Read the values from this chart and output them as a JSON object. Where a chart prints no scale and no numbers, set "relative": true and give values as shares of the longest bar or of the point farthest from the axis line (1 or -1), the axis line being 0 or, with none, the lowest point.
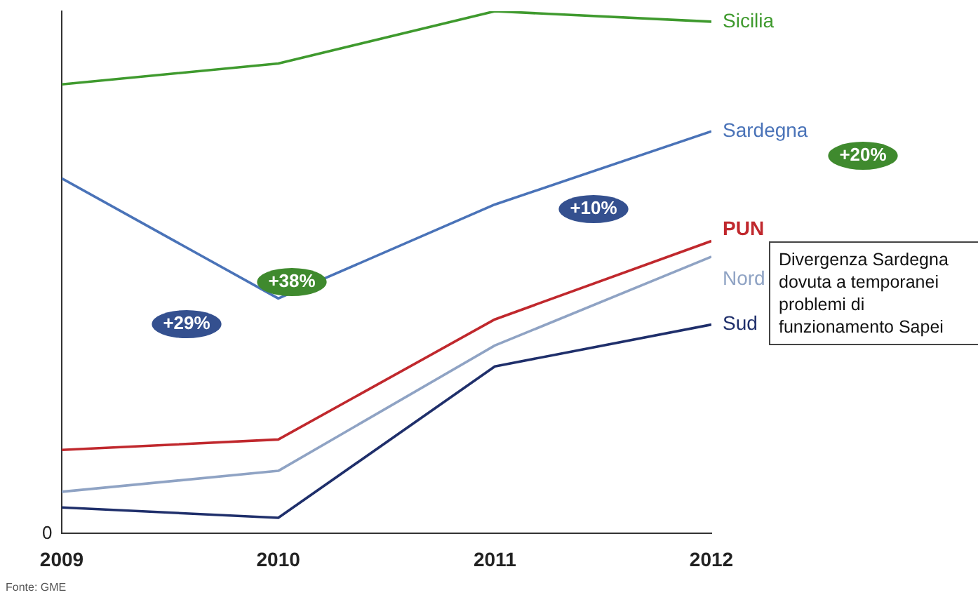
{
  "chart_data": {
    "type": "line",
    "relative": true,
    "x": [
      2009,
      2010,
      2011,
      2012
    ],
    "xlim": [
      2009,
      2012
    ],
    "xticks": [
      2009,
      2010,
      2011,
      2012
    ],
    "grid": false,
    "legend": false,
    "marker": "none",
    "line_style": "solid",
    "series": [
      {
        "name": "Sicilia",
        "color": "#3f9a2e",
        "values": [
          0.86,
          0.9,
          1,
          0.98
        ]
      },
      {
        "name": "Sardegna",
        "color": "#4a73b8",
        "values": [
          0.68,
          0.45,
          0.63,
          0.77
        ]
      },
      {
        "name": "PUN",
        "color": "#c0282d",
        "values": [
          0.16,
          0.18,
          0.41,
          0.56
        ]
      },
      {
        "name": "Nord",
        "color": "#8fa3c4",
        "values": [
          0.08,
          0.12,
          0.36,
          0.53
        ]
      },
      {
        "name": "Sud",
        "color": "#1f2f6b",
        "values": [
          0.05,
          0.03,
          0.32,
          0.4
        ]
      }
    ],
    "annotations": [
      "+29%",
      "+38%",
      "+10%",
      "+20%",
      "Divergenza Sardegna dovuta a temporanei problemi di funzionamento Sapei",
      "0",
      "Fonte: GME"
    ]
  }
}
